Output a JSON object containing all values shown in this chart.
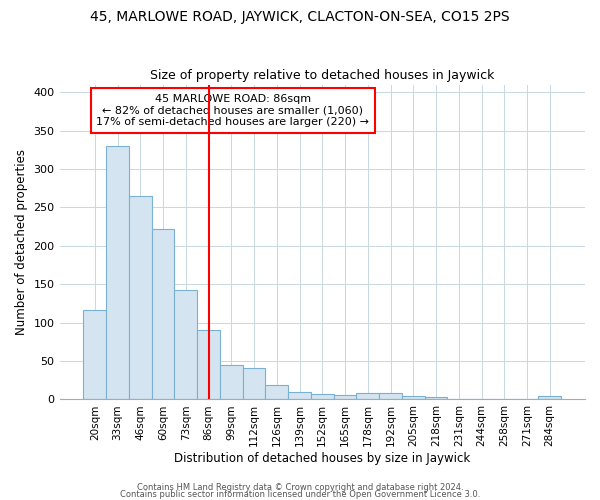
{
  "title": "45, MARLOWE ROAD, JAYWICK, CLACTON-ON-SEA, CO15 2PS",
  "subtitle": "Size of property relative to detached houses in Jaywick",
  "xlabel": "Distribution of detached houses by size in Jaywick",
  "ylabel": "Number of detached properties",
  "bar_color": "#d4e4f0",
  "bar_edge_color": "#7ab0d0",
  "marker_label": "45 MARLOWE ROAD: 86sqm",
  "annotation_line1": "← 82% of detached houses are smaller (1,060)",
  "annotation_line2": "17% of semi-detached houses are larger (220) →",
  "marker_color": "red",
  "categories": [
    "20sqm",
    "33sqm",
    "46sqm",
    "60sqm",
    "73sqm",
    "86sqm",
    "99sqm",
    "112sqm",
    "126sqm",
    "139sqm",
    "152sqm",
    "165sqm",
    "178sqm",
    "192sqm",
    "205sqm",
    "218sqm",
    "231sqm",
    "244sqm",
    "258sqm",
    "271sqm",
    "284sqm"
  ],
  "values": [
    117,
    330,
    265,
    222,
    143,
    90,
    45,
    41,
    19,
    10,
    7,
    6,
    8,
    8,
    4,
    3,
    1,
    1,
    1,
    0,
    5
  ],
  "ylim": [
    0,
    410
  ],
  "yticks": [
    0,
    50,
    100,
    150,
    200,
    250,
    300,
    350,
    400
  ],
  "footer1": "Contains HM Land Registry data © Crown copyright and database right 2024.",
  "footer2": "Contains public sector information licensed under the Open Government Licence 3.0.",
  "bg_color": "#ffffff",
  "grid_color": "#c8d8e0"
}
